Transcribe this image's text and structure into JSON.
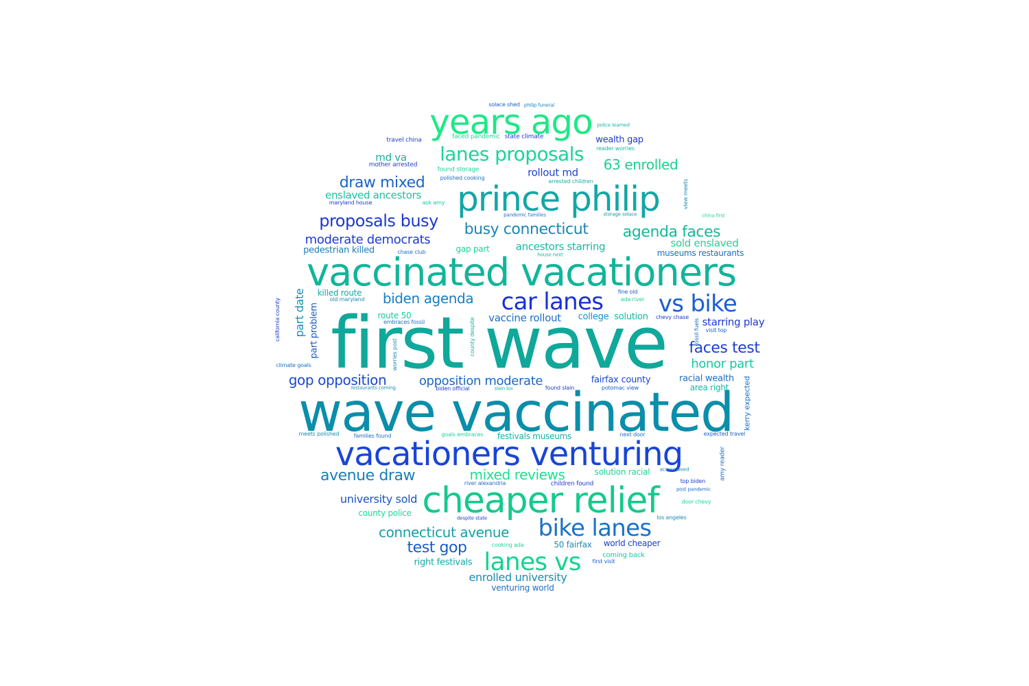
{
  "words": [
    {
      "t": "first wave",
      "s": 104,
      "c": "#0fa89a"
    },
    {
      "t": "wave vaccinated",
      "s": 78,
      "c": "#0a8eaa"
    },
    {
      "t": "vaccinated vacationers",
      "s": 56,
      "c": "#12b59a"
    },
    {
      "t": "vacationers venturing",
      "s": 48,
      "c": "#1845d6"
    },
    {
      "t": "cheaper relief",
      "s": 52,
      "c": "#16c98e"
    },
    {
      "t": "prince philip",
      "s": 50,
      "c": "#14a6a6"
    },
    {
      "t": "years ago",
      "s": 50,
      "c": "#1ee887"
    },
    {
      "t": "car lanes",
      "s": 34,
      "c": "#1a2fd6"
    },
    {
      "t": "vs bike",
      "s": 34,
      "c": "#1a5ed2"
    },
    {
      "t": "bike lanes",
      "s": 34,
      "c": "#1a72c6"
    },
    {
      "t": "lanes vs",
      "s": 36,
      "c": "#14d38e"
    },
    {
      "t": "lanes proposals",
      "s": 28,
      "c": "#18d59a"
    },
    {
      "t": "draw mixed",
      "s": 22,
      "c": "#1a64c8"
    },
    {
      "t": "proposals busy",
      "s": 24,
      "c": "#1c38d2"
    },
    {
      "t": "busy connecticut",
      "s": 22,
      "c": "#1a86b6"
    },
    {
      "t": "agenda faces",
      "s": 22,
      "c": "#14b898"
    },
    {
      "t": "moderate democrats",
      "s": 18,
      "c": "#1c3ad0"
    },
    {
      "t": "biden agenda",
      "s": 20,
      "c": "#1a7ebe"
    },
    {
      "t": "faces test",
      "s": 22,
      "c": "#1c40d0"
    },
    {
      "t": "honor part",
      "s": 18,
      "c": "#14c8a0"
    },
    {
      "t": "gop opposition",
      "s": 20,
      "c": "#1a48d0"
    },
    {
      "t": "opposition moderate",
      "s": 18,
      "c": "#1868c6"
    },
    {
      "t": "avenue draw",
      "s": 22,
      "c": "#1a7eb6"
    },
    {
      "t": "mixed reviews",
      "s": 20,
      "c": "#1ee08e"
    },
    {
      "t": "connecticut avenue",
      "s": 20,
      "c": "#14a0a6"
    },
    {
      "t": "test gop",
      "s": 22,
      "c": "#1a5cc8"
    },
    {
      "t": "university sold",
      "s": 16,
      "c": "#1a52c8"
    },
    {
      "t": "county police",
      "s": 12,
      "c": "#1cd89a"
    },
    {
      "t": "enrolled university",
      "s": 16,
      "c": "#1a8cb0"
    },
    {
      "t": "venturing world",
      "s": 12,
      "c": "#1a6ec6"
    },
    {
      "t": "right festivals",
      "s": 13,
      "c": "#14a8a8"
    },
    {
      "t": "63 enrolled",
      "s": 20,
      "c": "#1ad08e"
    },
    {
      "t": "wealth gap",
      "s": 13,
      "c": "#1c3ad0"
    },
    {
      "t": "rollout md",
      "s": 15,
      "c": "#1c40d0"
    },
    {
      "t": "md va",
      "s": 15,
      "c": "#16b0a4"
    },
    {
      "t": "enslaved ancestors",
      "s": 15,
      "c": "#14c4a0"
    },
    {
      "t": "pedestrian killed",
      "s": 13,
      "c": "#1a7eb8"
    },
    {
      "t": "ancestors starring",
      "s": 15,
      "c": "#16b8a2"
    },
    {
      "t": "sold enslaved",
      "s": 15,
      "c": "#1ad494"
    },
    {
      "t": "museums restaurants",
      "s": 12,
      "c": "#1a6ec6"
    },
    {
      "t": "vaccine rollout",
      "s": 15,
      "c": "#1a6ec8"
    },
    {
      "t": "college",
      "s": 13,
      "c": "#1a8cc0"
    },
    {
      "t": "solution",
      "s": 13,
      "c": "#14b8a0"
    },
    {
      "t": "starring play",
      "s": 15,
      "c": "#1c3ad0"
    },
    {
      "t": "fairfax county",
      "s": 13,
      "c": "#1a48d0"
    },
    {
      "t": "racial wealth",
      "s": 13,
      "c": "#1a6ec6"
    },
    {
      "t": "area right",
      "s": 12,
      "c": "#14b8a0"
    },
    {
      "t": "killed route",
      "s": 12,
      "c": "#16a8a8"
    },
    {
      "t": "route 50",
      "s": 12,
      "c": "#16c8a0"
    },
    {
      "t": "part date",
      "s": 16,
      "c": "#1a8cb6"
    },
    {
      "t": "part problem",
      "s": 13,
      "c": "#1a5ec8"
    },
    {
      "t": "festivals museums",
      "s": 12,
      "c": "#16b0a4"
    },
    {
      "t": "solution racial",
      "s": 12,
      "c": "#1ad494"
    },
    {
      "t": "children found",
      "s": 9,
      "c": "#1c3ad0"
    },
    {
      "t": "50 fairfax",
      "s": 12,
      "c": "#1a8cb0"
    },
    {
      "t": "world cheaper",
      "s": 12,
      "c": "#1c40d0"
    },
    {
      "t": "coming back",
      "s": 10,
      "c": "#16c8a0"
    },
    {
      "t": "gap part",
      "s": 12,
      "c": "#1ad494"
    },
    {
      "t": "kerry expected",
      "s": 11,
      "c": "#1a6ec6"
    },
    {
      "t": "travel china",
      "s": 9,
      "c": "#1c3ad0"
    },
    {
      "t": "solace shed",
      "s": 8,
      "c": "#1a5ec8"
    },
    {
      "t": "philip funeral",
      "s": 7,
      "c": "#1a7eb8"
    },
    {
      "t": "police learned",
      "s": 7,
      "c": "#16b0a4"
    },
    {
      "t": "faced pandemic",
      "s": 9,
      "c": "#1ad494"
    },
    {
      "t": "state climate",
      "s": 9,
      "c": "#1c3ad0"
    },
    {
      "t": "reader worries",
      "s": 8,
      "c": "#14b8a0"
    },
    {
      "t": "mother arrested",
      "s": 9,
      "c": "#1c3ad0"
    },
    {
      "t": "found storage",
      "s": 9,
      "c": "#1ad494"
    },
    {
      "t": "polished cooking",
      "s": 8,
      "c": "#1a6ec6"
    },
    {
      "t": "arrested children",
      "s": 8,
      "c": "#16b0a4"
    },
    {
      "t": "maryland house",
      "s": 8,
      "c": "#1c3ad0"
    },
    {
      "t": "ask amy",
      "s": 8,
      "c": "#16c8a0"
    },
    {
      "t": "pandemic families",
      "s": 7,
      "c": "#1a6ec6"
    },
    {
      "t": "storage solace",
      "s": 7,
      "c": "#1a8cb0"
    },
    {
      "t": "china first",
      "s": 7,
      "c": "#1ad494"
    },
    {
      "t": "chase club",
      "s": 8,
      "c": "#1a6ec6"
    },
    {
      "t": "house next",
      "s": 7,
      "c": "#16b0a4"
    },
    {
      "t": "fine old",
      "s": 8,
      "c": "#1a5ec8"
    },
    {
      "t": "ada river",
      "s": 8,
      "c": "#1ad494"
    },
    {
      "t": "old maryland",
      "s": 8,
      "c": "#1a8cb0"
    },
    {
      "t": "embraces fossil",
      "s": 8,
      "c": "#1a6ec6"
    },
    {
      "t": "chevy chase",
      "s": 8,
      "c": "#1c3ad0"
    },
    {
      "t": "visit top",
      "s": 8,
      "c": "#1a5ec8"
    },
    {
      "t": "climate goals",
      "s": 8,
      "c": "#1a6ec6"
    },
    {
      "t": "restaurants coming",
      "s": 7,
      "c": "#1a8cb0"
    },
    {
      "t": "biden official",
      "s": 8,
      "c": "#1c3ad0"
    },
    {
      "t": "slain los",
      "s": 7,
      "c": "#16b0a4"
    },
    {
      "t": "found slain",
      "s": 8,
      "c": "#1c3ad0"
    },
    {
      "t": "potomac view",
      "s": 8,
      "c": "#1a5ec8"
    },
    {
      "t": "meets polished",
      "s": 8,
      "c": "#1a8cb0"
    },
    {
      "t": "families found",
      "s": 8,
      "c": "#1a6ec6"
    },
    {
      "t": "goals embraces",
      "s": 8,
      "c": "#1ad494"
    },
    {
      "t": "next door",
      "s": 8,
      "c": "#1a6ec6"
    },
    {
      "t": "expected travel",
      "s": 8,
      "c": "#1a5ec8"
    },
    {
      "t": "amy reader",
      "s": 9,
      "c": "#1a6ec6"
    },
    {
      "t": "access weed",
      "s": 7,
      "c": "#1a8cb0"
    },
    {
      "t": "top biden",
      "s": 8,
      "c": "#1c3ad0"
    },
    {
      "t": "post pandemic",
      "s": 7,
      "c": "#1a6ec6"
    },
    {
      "t": "door chevy",
      "s": 8,
      "c": "#1ad494"
    },
    {
      "t": "los angeles",
      "s": 8,
      "c": "#1a8cb0"
    },
    {
      "t": "river alexandria",
      "s": 8,
      "c": "#1a6ec6"
    },
    {
      "t": "despite state",
      "s": 7,
      "c": "#1c3ad0"
    },
    {
      "t": "cooking ada",
      "s": 8,
      "c": "#1ad494"
    },
    {
      "t": "first visit",
      "s": 8,
      "c": "#1a5ec8"
    },
    {
      "t": "california county",
      "s": 8,
      "c": "#1c3ad0"
    },
    {
      "t": "county despite",
      "s": 8,
      "c": "#16b0a4"
    },
    {
      "t": "worries post",
      "s": 8,
      "c": "#1a8cb0"
    },
    {
      "t": "fossil fuels",
      "s": 8,
      "c": "#1a6ec6"
    },
    {
      "t": "view meets",
      "s": 8,
      "c": "#1a8cb0"
    }
  ]
}
